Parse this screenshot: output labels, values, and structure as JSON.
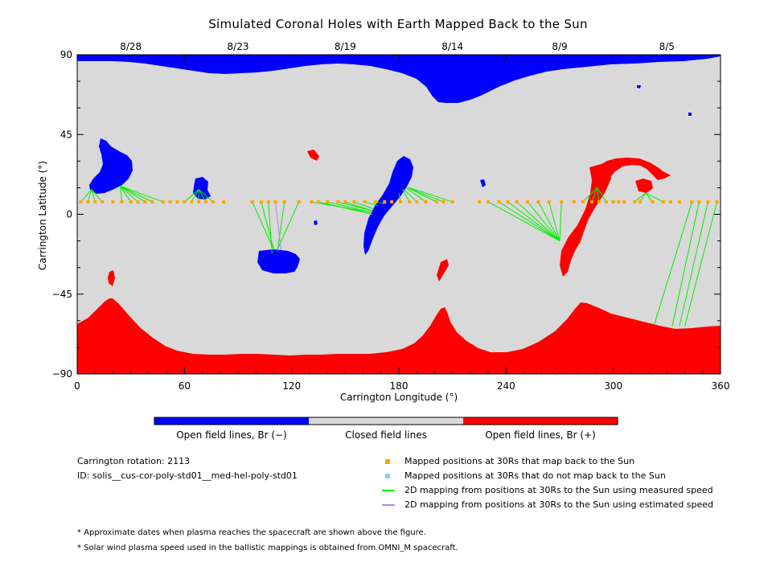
{
  "chart_data": {
    "type": "map",
    "title": "Simulated Coronal Holes with Earth Mapped Back to the Sun",
    "xlabel": "Carrington Longitude (°)",
    "ylabel": "Carrington Latitude (°)",
    "xlim": [
      0,
      360
    ],
    "ylim": [
      -90,
      90
    ],
    "x_ticks": [
      "0",
      "60",
      "120",
      "180",
      "240",
      "300",
      "360"
    ],
    "y_ticks": [
      "90",
      "45",
      "0",
      "-45",
      "-90"
    ],
    "top_date_axis": [
      {
        "label": "8/28",
        "lon": 30
      },
      {
        "label": "8/23",
        "lon": 90
      },
      {
        "label": "8/19",
        "lon": 150
      },
      {
        "label": "8/14",
        "lon": 210
      },
      {
        "label": "8/9",
        "lon": 270
      },
      {
        "label": "8/5",
        "lon": 330
      }
    ],
    "colors": {
      "open_neg": "#0000ff",
      "closed": "#d9d9d9",
      "open_pos": "#ff0000",
      "mapped": "#ffa500",
      "not_mapped": "#87cefa",
      "measured": "#00ee00",
      "estimated": "#b088ee"
    },
    "mapped_latitude": 7,
    "mapped_longitudes": [
      2,
      6,
      10,
      14,
      20,
      25,
      30,
      34,
      38,
      42,
      48,
      52,
      56,
      60,
      64,
      68,
      72,
      76,
      82,
      98,
      103,
      107,
      111,
      116,
      124,
      131,
      135,
      140,
      146,
      150,
      155,
      161,
      167,
      172,
      176,
      181,
      186,
      190,
      195,
      201,
      205,
      210,
      225,
      230,
      236,
      241,
      246,
      252,
      258,
      264,
      271,
      278,
      283,
      288,
      292,
      296,
      300,
      303,
      306,
      312,
      315,
      322,
      328,
      332,
      337,
      344,
      348,
      353,
      358
    ],
    "measured_mappings": [
      {
        "from": [
          2,
          7
        ],
        "to": [
          8,
          14
        ]
      },
      {
        "from": [
          6,
          7
        ],
        "to": [
          8,
          14
        ]
      },
      {
        "from": [
          10,
          7
        ],
        "to": [
          8,
          14
        ]
      },
      {
        "from": [
          14,
          7
        ],
        "to": [
          8,
          14
        ]
      },
      {
        "from": [
          25,
          7
        ],
        "to": [
          24,
          16
        ]
      },
      {
        "from": [
          30,
          7
        ],
        "to": [
          24,
          16
        ]
      },
      {
        "from": [
          34,
          7
        ],
        "to": [
          24,
          16
        ]
      },
      {
        "from": [
          38,
          7
        ],
        "to": [
          24,
          16
        ]
      },
      {
        "from": [
          42,
          7
        ],
        "to": [
          24,
          16
        ]
      },
      {
        "from": [
          48,
          7
        ],
        "to": [
          24,
          16
        ]
      },
      {
        "from": [
          60,
          7
        ],
        "to": [
          68,
          14
        ]
      },
      {
        "from": [
          64,
          7
        ],
        "to": [
          68,
          14
        ]
      },
      {
        "from": [
          68,
          7
        ],
        "to": [
          68,
          14
        ]
      },
      {
        "from": [
          72,
          7
        ],
        "to": [
          68,
          14
        ]
      },
      {
        "from": [
          76,
          7
        ],
        "to": [
          68,
          14
        ]
      },
      {
        "from": [
          98,
          7
        ],
        "to": [
          110,
          -20
        ]
      },
      {
        "from": [
          103,
          7
        ],
        "to": [
          110,
          -20
        ]
      },
      {
        "from": [
          107,
          7
        ],
        "to": [
          109,
          -22
        ]
      },
      {
        "from": [
          116,
          7
        ],
        "to": [
          112,
          -21
        ]
      },
      {
        "from": [
          124,
          7
        ],
        "to": [
          112,
          -20
        ]
      },
      {
        "from": [
          131,
          7
        ],
        "to": [
          165,
          1
        ]
      },
      {
        "from": [
          135,
          7
        ],
        "to": [
          165,
          0
        ]
      },
      {
        "from": [
          140,
          7
        ],
        "to": [
          165,
          1
        ]
      },
      {
        "from": [
          146,
          7
        ],
        "to": [
          165,
          2
        ]
      },
      {
        "from": [
          150,
          7
        ],
        "to": [
          165,
          2
        ]
      },
      {
        "from": [
          155,
          7
        ],
        "to": [
          166,
          3
        ]
      },
      {
        "from": [
          161,
          7
        ],
        "to": [
          168,
          5
        ]
      },
      {
        "from": [
          167,
          7
        ],
        "to": [
          172,
          6
        ]
      },
      {
        "from": [
          181,
          7
        ],
        "to": [
          180,
          12
        ]
      },
      {
        "from": [
          186,
          7
        ],
        "to": [
          182,
          14
        ]
      },
      {
        "from": [
          190,
          7
        ],
        "to": [
          183,
          14
        ]
      },
      {
        "from": [
          195,
          7
        ],
        "to": [
          184,
          15
        ]
      },
      {
        "from": [
          201,
          7
        ],
        "to": [
          185,
          15
        ]
      },
      {
        "from": [
          205,
          7
        ],
        "to": [
          185,
          15
        ]
      },
      {
        "from": [
          210,
          7
        ],
        "to": [
          186,
          15
        ]
      },
      {
        "from": [
          230,
          7
        ],
        "to": [
          270,
          -15
        ]
      },
      {
        "from": [
          236,
          7
        ],
        "to": [
          270,
          -15
        ]
      },
      {
        "from": [
          241,
          7
        ],
        "to": [
          270,
          -15
        ]
      },
      {
        "from": [
          246,
          7
        ],
        "to": [
          270,
          -15
        ]
      },
      {
        "from": [
          252,
          7
        ],
        "to": [
          270,
          -15
        ]
      },
      {
        "from": [
          258,
          7
        ],
        "to": [
          270,
          -15
        ]
      },
      {
        "from": [
          264,
          7
        ],
        "to": [
          270,
          -15
        ]
      },
      {
        "from": [
          271,
          7
        ],
        "to": [
          270,
          -15
        ]
      },
      {
        "from": [
          283,
          7
        ],
        "to": [
          291,
          15
        ]
      },
      {
        "from": [
          288,
          7
        ],
        "to": [
          291,
          15
        ]
      },
      {
        "from": [
          292,
          7
        ],
        "to": [
          291,
          15
        ]
      },
      {
        "from": [
          296,
          7
        ],
        "to": [
          291,
          15
        ]
      },
      {
        "from": [
          312,
          7
        ],
        "to": [
          318,
          12
        ]
      },
      {
        "from": [
          315,
          7
        ],
        "to": [
          318,
          12
        ]
      },
      {
        "from": [
          322,
          7
        ],
        "to": [
          318,
          12
        ]
      },
      {
        "from": [
          328,
          7
        ],
        "to": [
          318,
          12
        ]
      },
      {
        "from": [
          344,
          7
        ],
        "to": [
          323,
          -62
        ]
      },
      {
        "from": [
          348,
          7
        ],
        "to": [
          333,
          -63
        ]
      },
      {
        "from": [
          353,
          7
        ],
        "to": [
          337,
          -63
        ]
      },
      {
        "from": [
          358,
          7
        ],
        "to": [
          340,
          -63
        ]
      }
    ],
    "estimated_mappings": [
      {
        "from": [
          111,
          7
        ],
        "to": [
          114,
          -20
        ]
      }
    ]
  },
  "colorbar": {
    "neg_label": "Open field lines, Br (−)",
    "closed_label": "Closed field lines",
    "pos_label": "Open field lines, Br (+)"
  },
  "info": {
    "rotation": "Carrington rotation: 2113",
    "id": "ID: solis__cus-cor-poly-std01__med-hel-poly-std01"
  },
  "legend": [
    {
      "key": "mapped",
      "label": "Mapped positions at 30Rs that map back to the Sun",
      "kind": "square",
      "color": "#ffa500"
    },
    {
      "key": "not_mapped",
      "label": "Mapped positions at 30Rs that do not map back to the Sun",
      "kind": "square",
      "color": "#87cefa"
    },
    {
      "key": "measured",
      "label": "2D mapping from positions at 30Rs to the Sun using measured speed",
      "kind": "line",
      "color": "#00ee00"
    },
    {
      "key": "estimated",
      "label": "2D mapping from positions at 30Rs to the Sun using estimated speed",
      "kind": "line",
      "color": "#b088ee"
    }
  ],
  "footnotes": [
    "* Approximate dates when plasma reaches the spacecraft are shown above the figure.",
    "* Solar wind plasma speed used in the ballistic mappings is obtained from OMNI_M spacecraft."
  ]
}
